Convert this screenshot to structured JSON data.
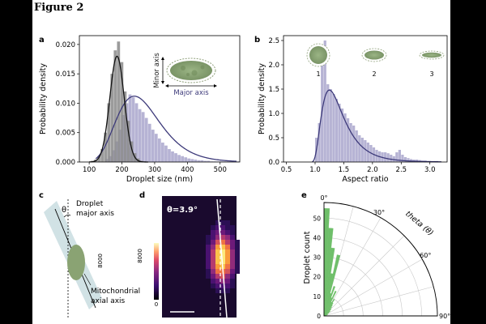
{
  "figure_title": "Figure 2",
  "panels": {
    "a": "a",
    "b": "b",
    "c": "c",
    "d": "d",
    "e": "e"
  },
  "panel_a": {
    "inset": {
      "minor_axis": "Minor axis",
      "major_axis": "Major axis"
    }
  },
  "panel_b": {
    "shape_labels": [
      "1",
      "2",
      "3"
    ]
  },
  "panel_c": {
    "theta": "θ",
    "droplet_line1": "Droplet",
    "droplet_line2": "major axis",
    "mito_line1": "Mitochondrial",
    "mito_line2": "axial axis"
  },
  "panel_d": {
    "angle_label": "θ=3.9°",
    "colorbar_max": "8000",
    "colorbar_min": "0"
  },
  "colors": {
    "gray_hist": "#8a8a8a",
    "purple_hist": "#a9a6cc",
    "purple_curve": "#3d3a7a",
    "green": "#6fbf6a",
    "droplet_green": "#8aa373"
  },
  "chart_data": [
    {
      "id": "a",
      "type": "bar",
      "xlabel": "Droplet size (nm)",
      "ylabel": "Probability density",
      "xlim": [
        70,
        560
      ],
      "ylim": [
        0,
        0.0215
      ],
      "xticks": [
        100,
        200,
        300,
        400,
        500
      ],
      "yticks": [
        0.0,
        0.005,
        0.01,
        0.015,
        0.02
      ],
      "ytick_labels": [
        "0.000",
        "0.005",
        "0.010",
        "0.015",
        "0.020"
      ],
      "series": [
        {
          "name": "gray",
          "bin_start": 105,
          "bin_width": 10,
          "values": [
            0.0002,
            0.0004,
            0.001,
            0.0022,
            0.005,
            0.01,
            0.015,
            0.019,
            0.0205,
            0.017,
            0.012,
            0.007,
            0.0035,
            0.0015,
            0.0006,
            0.0002
          ],
          "fit": {
            "kind": "gaussian",
            "mu": 185,
            "sigma": 22,
            "peak": 0.018
          }
        },
        {
          "name": "purple",
          "bin_start": 150,
          "bin_width": 10,
          "values": [
            0.0005,
            0.001,
            0.002,
            0.0035,
            0.0055,
            0.008,
            0.01,
            0.0115,
            0.011,
            0.01,
            0.009,
            0.0085,
            0.0075,
            0.0065,
            0.0055,
            0.0048,
            0.004,
            0.0033,
            0.0028,
            0.0022,
            0.0018,
            0.0015,
            0.0012,
            0.001,
            0.0008,
            0.0006,
            0.0005,
            0.0004,
            0.0003,
            0.0003,
            0.0002,
            0.0002,
            0.0001,
            0.0001,
            0.0001,
            0.0001,
            0.0001,
            0.0001,
            0.0001,
            0.0001,
            0.0001
          ],
          "fit": {
            "kind": "lognormal",
            "mu": 5.55,
            "sigma": 0.28,
            "scale": 1.0
          }
        }
      ]
    },
    {
      "id": "b",
      "type": "bar",
      "xlabel": "Aspect ratio",
      "ylabel": "Probability density",
      "xlim": [
        0.45,
        3.3
      ],
      "ylim": [
        0,
        2.6
      ],
      "xticks": [
        0.5,
        1.0,
        1.5,
        2.0,
        2.5,
        3.0
      ],
      "xtick_labels": [
        "0.5",
        "1.0",
        "1.5",
        "2.0",
        "2.5",
        "3.0"
      ],
      "yticks": [
        0.0,
        0.5,
        1.0,
        1.5,
        2.0,
        2.5
      ],
      "ytick_labels": [
        "0.0",
        "0.5",
        "1.0",
        "1.5",
        "2.0",
        "2.5"
      ],
      "bin_start": 1.0,
      "bin_width": 0.05,
      "values": [
        0.5,
        0.8,
        2.2,
        2.5,
        1.6,
        1.5,
        1.4,
        1.3,
        1.2,
        1.1,
        1.0,
        0.9,
        0.8,
        0.75,
        0.65,
        0.55,
        0.5,
        0.45,
        0.4,
        0.35,
        0.3,
        0.25,
        0.22,
        0.2,
        0.2,
        0.18,
        0.15,
        0.12,
        0.2,
        0.25,
        0.15,
        0.1,
        0.08,
        0.06,
        0.05,
        0.05,
        0.04,
        0.03,
        0.03,
        0.02,
        0.02,
        0.02,
        0.02
      ],
      "fit": {
        "kind": "lognormal",
        "loc": 0.9,
        "mu": -0.75,
        "sigma": 0.55
      }
    },
    {
      "id": "e",
      "type": "polar_bar",
      "ylabel": "Droplet count",
      "angle_label": "theta (θ)",
      "angle_ticks": [
        "0°",
        "30°",
        "60°",
        "90°"
      ],
      "r_ticks": [
        0,
        10,
        20,
        30,
        40,
        50
      ],
      "r_max": 58,
      "bin_width_deg": 3,
      "values": [
        55,
        45,
        35,
        22,
        32,
        12,
        16,
        10,
        14,
        8,
        10,
        8,
        7,
        6,
        5,
        5,
        4,
        4,
        3,
        3,
        2,
        2,
        2,
        2,
        1,
        1,
        1,
        1,
        1,
        1
      ]
    }
  ]
}
